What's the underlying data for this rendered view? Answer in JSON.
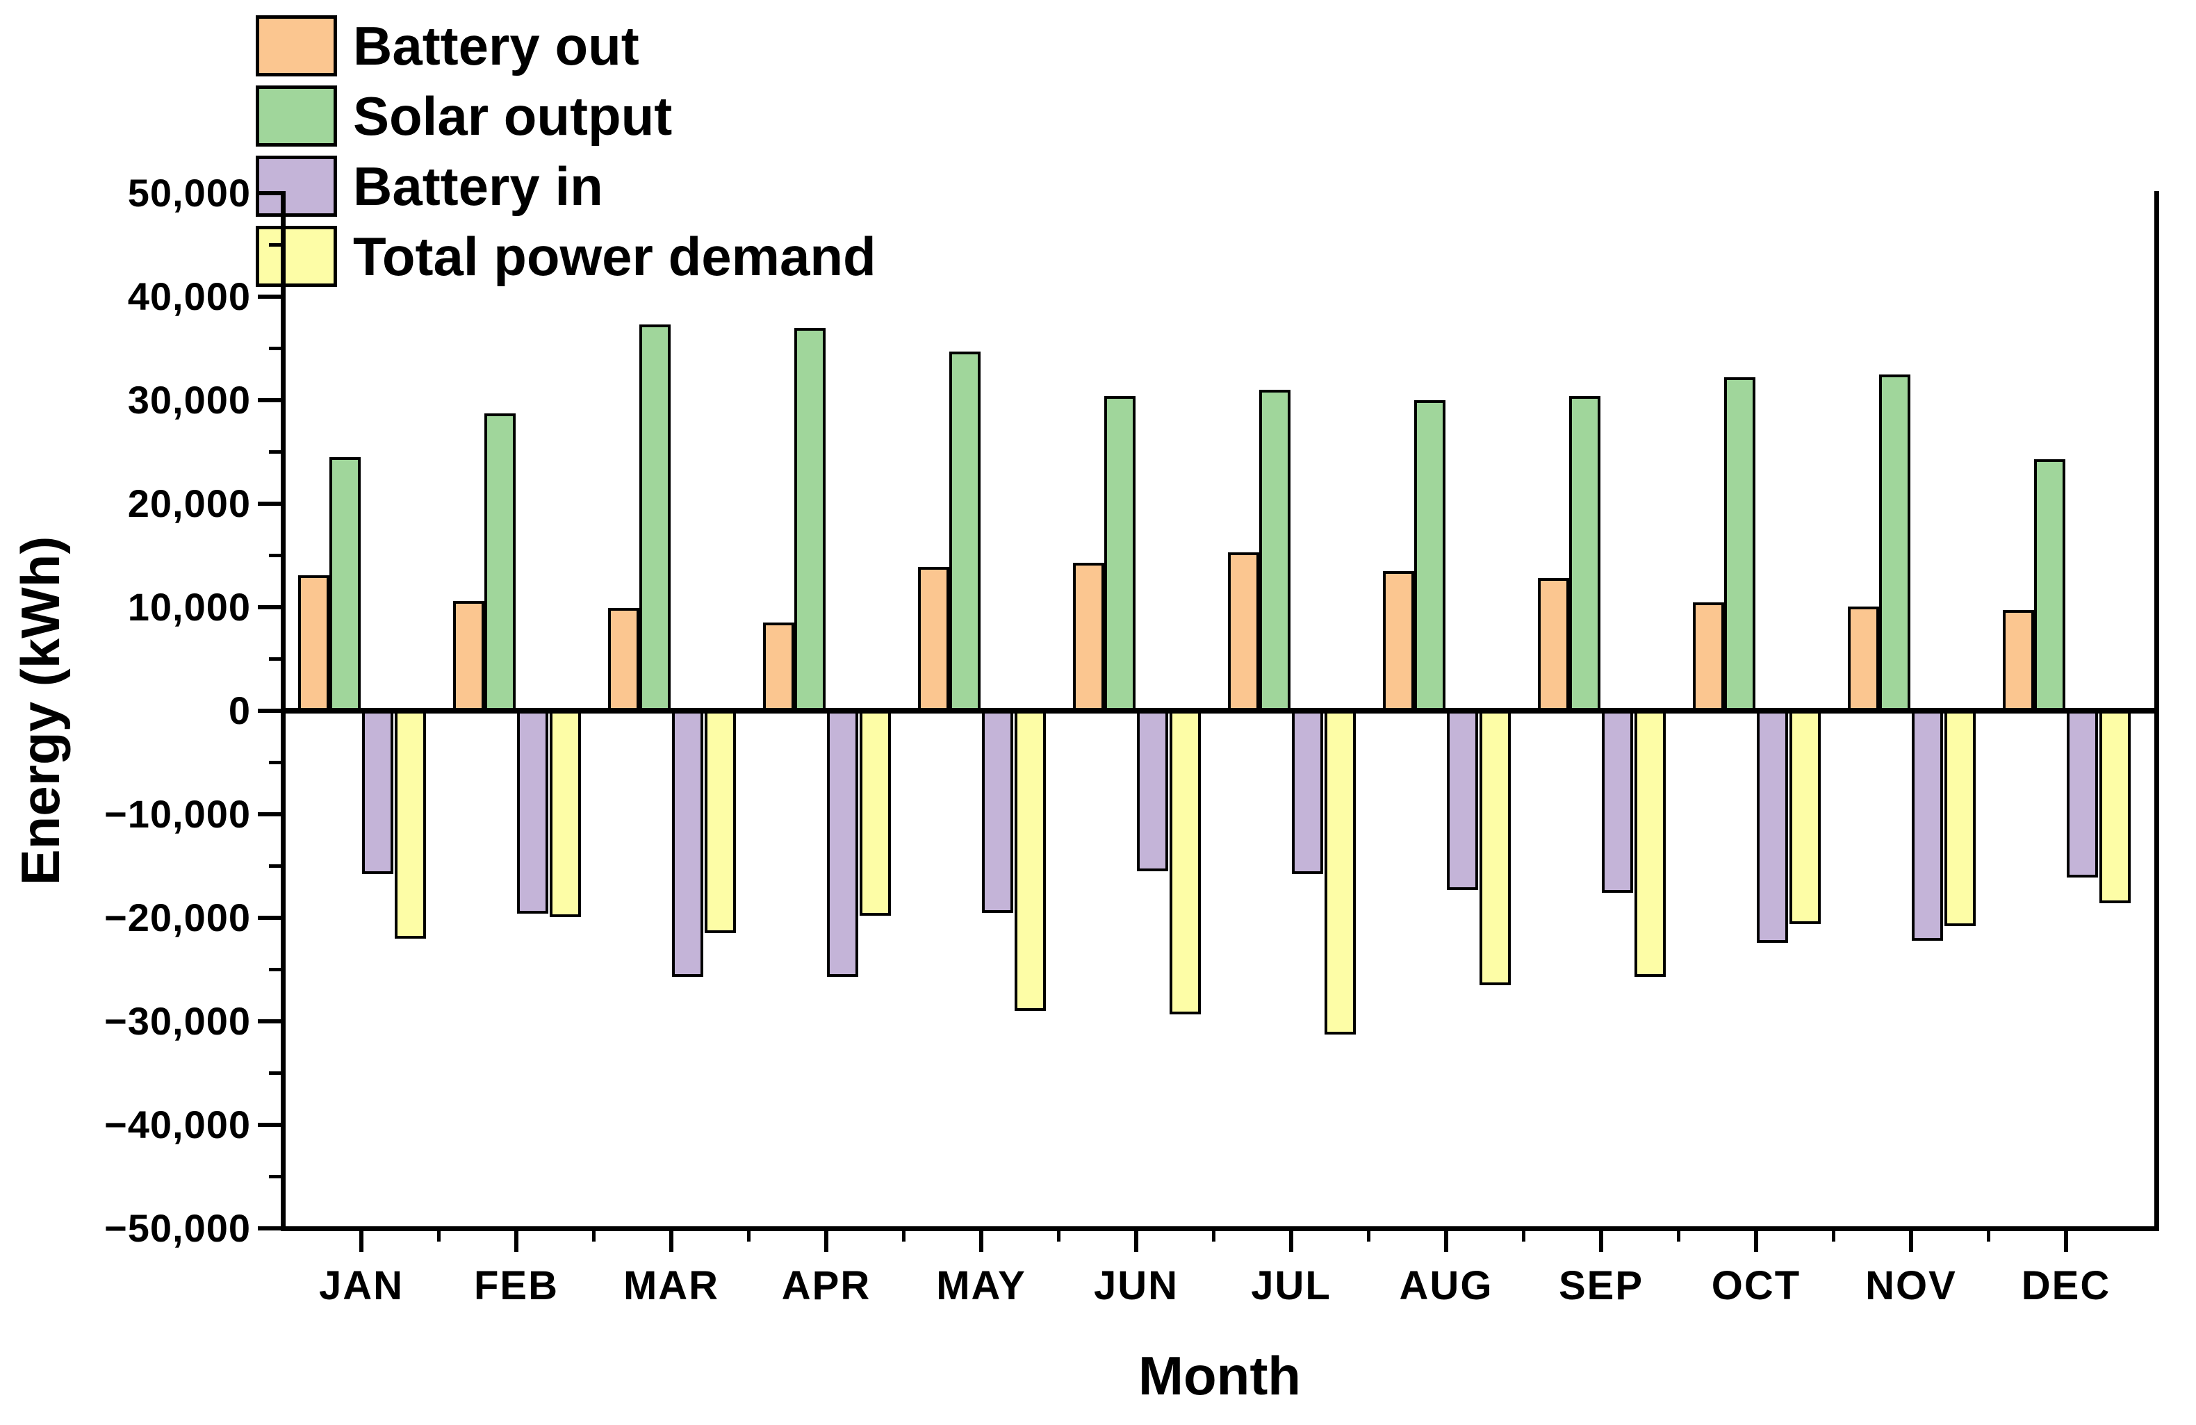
{
  "chart_data": {
    "type": "bar",
    "title": "",
    "xlabel": "Month",
    "ylabel": "Energy (kWh)",
    "categories": [
      "JAN",
      "FEB",
      "MAR",
      "APR",
      "MAY",
      "JUN",
      "JUL",
      "AUG",
      "SEP",
      "OCT",
      "NOV",
      "DEC"
    ],
    "series": [
      {
        "name": "Battery out",
        "color": "#FBC690",
        "values": [
          13100,
          10600,
          9900,
          8500,
          13900,
          14300,
          15300,
          13500,
          12800,
          10500,
          10100,
          9700
        ]
      },
      {
        "name": "Solar output",
        "color": "#A0D69B",
        "values": [
          24500,
          28700,
          37300,
          37000,
          34700,
          30400,
          31000,
          30000,
          30400,
          32200,
          32500,
          24300
        ]
      },
      {
        "name": "Battery in",
        "color": "#C4B4D8",
        "values": [
          -15800,
          -19600,
          -25700,
          -25700,
          -19500,
          -15500,
          -15800,
          -17300,
          -17600,
          -22400,
          -22200,
          -16100
        ]
      },
      {
        "name": "Total power demand",
        "color": "#FDFDA6",
        "values": [
          -22000,
          -19900,
          -21500,
          -19800,
          -29000,
          -29300,
          -31300,
          -26500,
          -25700,
          -20600,
          -20800,
          -18600
        ]
      }
    ],
    "ylim": [
      -50000,
      50000
    ],
    "y_major_step": 10000,
    "y_minor_step": 5000,
    "y_ticks": [
      "50,000",
      "40,000",
      "30,000",
      "20,000",
      "10,000",
      "0",
      "−10,000",
      "−20,000",
      "−30,000",
      "−40,000",
      "−50,000"
    ],
    "grid": "off",
    "legend_position": "top-left",
    "bar_outline_color": "#000000",
    "background_color": "#FFFFFF"
  }
}
